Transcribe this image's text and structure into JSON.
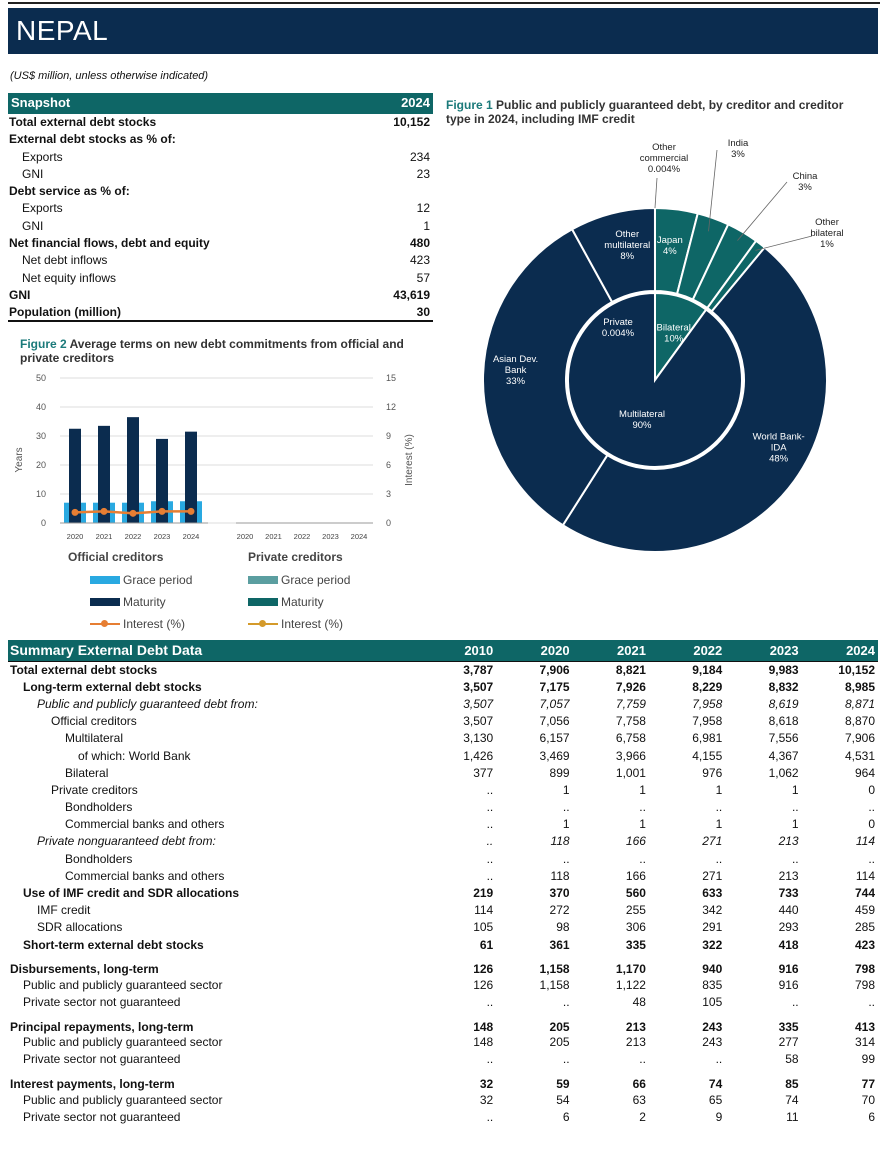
{
  "title": "NEPAL",
  "units_note": "(US$ million, unless otherwise indicated)",
  "snapshot": {
    "header": "Snapshot",
    "year": "2024",
    "rows": [
      {
        "label": "Total external debt stocks",
        "value": "10,152",
        "bold": true,
        "indent": 0
      },
      {
        "label": "External debt stocks as % of:",
        "value": "",
        "bold": true,
        "indent": 0
      },
      {
        "label": "Exports",
        "value": "234",
        "bold": false,
        "indent": 1
      },
      {
        "label": "GNI",
        "value": "23",
        "bold": false,
        "indent": 1
      },
      {
        "label": "Debt service as % of:",
        "value": "",
        "bold": true,
        "indent": 0
      },
      {
        "label": "Exports",
        "value": "12",
        "bold": false,
        "indent": 1
      },
      {
        "label": "GNI",
        "value": "1",
        "bold": false,
        "indent": 1
      },
      {
        "label": "Net financial flows, debt and equity",
        "value": "480",
        "bold": true,
        "indent": 0
      },
      {
        "label": "Net debt inflows",
        "value": "423",
        "bold": false,
        "indent": 1
      },
      {
        "label": "Net equity inflows",
        "value": "57",
        "bold": false,
        "indent": 1
      },
      {
        "label": "GNI",
        "value": "43,619",
        "bold": true,
        "indent": 0
      },
      {
        "label": "Population (million)",
        "value": "30",
        "bold": true,
        "indent": 0
      }
    ]
  },
  "figure1": {
    "number": "Figure 1",
    "title": "Public and publicly guaranteed debt, by creditor and creditor type in 2024, including IMF credit"
  },
  "figure2": {
    "number": "Figure 2",
    "title": "Average terms on new debt commitments from official and private creditors"
  },
  "chart_data": [
    {
      "type": "bar",
      "title": "Average terms on new debt commitments from official and private creditors",
      "ylabel": "Years",
      "y2label": "Interest (%)",
      "ylim": [
        0,
        50
      ],
      "y2lim": [
        0,
        15
      ],
      "yticks": [
        "0",
        "10",
        "20",
        "30",
        "40",
        "50"
      ],
      "y2ticks": [
        "0",
        "3",
        "6",
        "9",
        "12",
        "15"
      ],
      "groups": [
        {
          "name": "Official creditors",
          "categories": [
            "2020",
            "2021",
            "2022",
            "2023",
            "2024"
          ],
          "series": [
            {
              "name": "Grace period",
              "kind": "bar",
              "color": "#29a9e1",
              "values": [
                7,
                7,
                7,
                7.5,
                7.5
              ]
            },
            {
              "name": "Maturity",
              "kind": "bar",
              "color": "#0b2c4f",
              "values": [
                32.5,
                33.5,
                36.5,
                29,
                31.5
              ]
            },
            {
              "name": "Interest (%)",
              "kind": "line",
              "color": "#e67e33",
              "values": [
                1.1,
                1.2,
                1.0,
                1.2,
                1.2
              ]
            }
          ]
        },
        {
          "name": "Private creditors",
          "categories": [
            "2020",
            "2021",
            "2022",
            "2023",
            "2024"
          ],
          "series": [
            {
              "name": "Grace period",
              "kind": "bar",
              "color": "#5b9ea0",
              "values": [
                0,
                0,
                0,
                0,
                0
              ]
            },
            {
              "name": "Maturity",
              "kind": "bar",
              "color": "#0e6666",
              "values": [
                0,
                0,
                0,
                0,
                0
              ]
            },
            {
              "name": "Interest (%)",
              "kind": "line",
              "color": "#d49a2a",
              "values": []
            }
          ]
        }
      ]
    },
    {
      "type": "pie",
      "title": "Public and publicly guaranteed debt, by creditor and creditor type in 2024, including IMF credit",
      "inner": [
        {
          "label": "Multilateral",
          "value": 90,
          "display": "90%",
          "color": "#0b2c4f"
        },
        {
          "label": "Bilateral",
          "value": 10,
          "display": "10%",
          "color": "#0e6666"
        },
        {
          "label": "Private",
          "value": 0.004,
          "display": "0.004%",
          "color": "#0b2c4f"
        }
      ],
      "outer": [
        {
          "label": "Japan",
          "value": 4,
          "display": "4%",
          "color": "#0e6666"
        },
        {
          "label": "India",
          "value": 3,
          "display": "3%",
          "color": "#0e6666"
        },
        {
          "label": "China",
          "value": 3,
          "display": "3%",
          "color": "#0e6666"
        },
        {
          "label": "Other bilateral",
          "value": 1,
          "display": "1%",
          "color": "#0e6666"
        },
        {
          "label": "World Bank-IDA",
          "value": 48,
          "display": "48%",
          "color": "#0b2c4f"
        },
        {
          "label": "Asian Dev. Bank",
          "value": 33,
          "display": "33%",
          "color": "#0b2c4f"
        },
        {
          "label": "Other multilateral",
          "value": 8,
          "display": "8%",
          "color": "#0b2c4f"
        },
        {
          "label": "Other commercial",
          "value": 0.004,
          "display": "0.004%",
          "color": "#0b2c4f"
        }
      ]
    }
  ],
  "legend": {
    "official_head": "Official creditors",
    "private_head": "Private creditors",
    "grace": "Grace period",
    "maturity": "Maturity",
    "interest": "Interest (%)"
  },
  "summary": {
    "header": "Summary External Debt Data",
    "years": [
      "2010",
      "2020",
      "2021",
      "2022",
      "2023",
      "2024"
    ],
    "rows": [
      {
        "label": "Total external debt stocks",
        "values": [
          "3,787",
          "7,906",
          "8,821",
          "9,184",
          "9,983",
          "10,152"
        ],
        "style": "b",
        "indent": 0
      },
      {
        "label": "Long-term external debt stocks",
        "values": [
          "3,507",
          "7,175",
          "7,926",
          "8,229",
          "8,832",
          "8,985"
        ],
        "style": "b",
        "indent": 1
      },
      {
        "label": "Public and publicly guaranteed debt from:",
        "values": [
          "3,507",
          "7,057",
          "7,759",
          "7,958",
          "8,619",
          "8,871"
        ],
        "style": "i",
        "indent": 2
      },
      {
        "label": "Official creditors",
        "values": [
          "3,507",
          "7,056",
          "7,758",
          "7,958",
          "8,618",
          "8,870"
        ],
        "style": "",
        "indent": 3
      },
      {
        "label": "Multilateral",
        "values": [
          "3,130",
          "6,157",
          "6,758",
          "6,981",
          "7,556",
          "7,906"
        ],
        "style": "",
        "indent": 4
      },
      {
        "label": "of which: World Bank",
        "values": [
          "1,426",
          "3,469",
          "3,966",
          "4,155",
          "4,367",
          "4,531"
        ],
        "style": "",
        "indent": 5
      },
      {
        "label": "Bilateral",
        "values": [
          "377",
          "899",
          "1,001",
          "976",
          "1,062",
          "964"
        ],
        "style": "",
        "indent": 4
      },
      {
        "label": "Private creditors",
        "values": [
          "..",
          "1",
          "1",
          "1",
          "1",
          "0"
        ],
        "style": "",
        "indent": 3
      },
      {
        "label": "Bondholders",
        "values": [
          "..",
          "..",
          "..",
          "..",
          "..",
          ".."
        ],
        "style": "",
        "indent": 4
      },
      {
        "label": "Commercial banks and others",
        "values": [
          "..",
          "1",
          "1",
          "1",
          "1",
          "0"
        ],
        "style": "",
        "indent": 4
      },
      {
        "label": "Private nonguaranteed debt from:",
        "values": [
          "..",
          "118",
          "166",
          "271",
          "213",
          "114"
        ],
        "style": "i",
        "indent": 2
      },
      {
        "label": "Bondholders",
        "values": [
          "..",
          "..",
          "..",
          "..",
          "..",
          ".."
        ],
        "style": "",
        "indent": 4
      },
      {
        "label": "Commercial banks and others",
        "values": [
          "..",
          "118",
          "166",
          "271",
          "213",
          "114"
        ],
        "style": "",
        "indent": 4
      },
      {
        "label": "Use of IMF credit and SDR allocations",
        "values": [
          "219",
          "370",
          "560",
          "633",
          "733",
          "744"
        ],
        "style": "b",
        "indent": 1
      },
      {
        "label": "IMF credit",
        "values": [
          "114",
          "272",
          "255",
          "342",
          "440",
          "459"
        ],
        "style": "",
        "indent": 2
      },
      {
        "label": "SDR allocations",
        "values": [
          "105",
          "98",
          "306",
          "291",
          "293",
          "285"
        ],
        "style": "",
        "indent": 2
      },
      {
        "label": "Short-term external debt stocks",
        "values": [
          "61",
          "361",
          "335",
          "322",
          "418",
          "423"
        ],
        "style": "b",
        "indent": 1
      },
      {
        "label": "Disbursements, long-term",
        "values": [
          "126",
          "1,158",
          "1,170",
          "940",
          "916",
          "798"
        ],
        "style": "b gap",
        "indent": 0
      },
      {
        "label": "Public and publicly guaranteed sector",
        "values": [
          "126",
          "1,158",
          "1,122",
          "835",
          "916",
          "798"
        ],
        "style": "",
        "indent": 1
      },
      {
        "label": "Private sector not guaranteed",
        "values": [
          "..",
          "..",
          "48",
          "105",
          "..",
          ".."
        ],
        "style": "",
        "indent": 1
      },
      {
        "label": "Principal repayments, long-term",
        "values": [
          "148",
          "205",
          "213",
          "243",
          "335",
          "413"
        ],
        "style": "b gap",
        "indent": 0
      },
      {
        "label": "Public and publicly guaranteed sector",
        "values": [
          "148",
          "205",
          "213",
          "243",
          "277",
          "314"
        ],
        "style": "",
        "indent": 1
      },
      {
        "label": "Private sector not guaranteed",
        "values": [
          "..",
          "..",
          "..",
          "..",
          "58",
          "99"
        ],
        "style": "",
        "indent": 1
      },
      {
        "label": "Interest payments, long-term",
        "values": [
          "32",
          "59",
          "66",
          "74",
          "85",
          "77"
        ],
        "style": "b gap",
        "indent": 0
      },
      {
        "label": "Public and publicly guaranteed sector",
        "values": [
          "32",
          "54",
          "63",
          "65",
          "74",
          "70"
        ],
        "style": "",
        "indent": 1
      },
      {
        "label": "Private sector not guaranteed",
        "values": [
          "..",
          "6",
          "2",
          "9",
          "11",
          "6"
        ],
        "style": "",
        "indent": 1
      }
    ]
  }
}
